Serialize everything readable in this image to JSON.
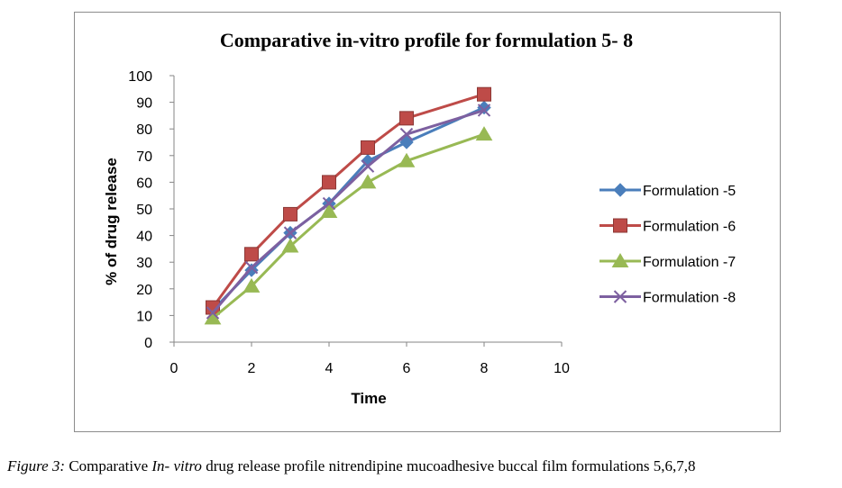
{
  "chart_data": {
    "type": "line",
    "title": "Comparative in-vitro profile for formulation 5- 8",
    "xlabel": "Time",
    "ylabel": "% of drug release",
    "xlim": [
      0,
      10
    ],
    "ylim": [
      0,
      100
    ],
    "xticks": [
      "0",
      "2",
      "4",
      "6",
      "8",
      "10"
    ],
    "yticks": [
      "0",
      "10",
      "20",
      "30",
      "40",
      "50",
      "60",
      "70",
      "80",
      "90",
      "100"
    ],
    "grid": false,
    "legend_position": "right",
    "x": [
      1,
      2,
      3,
      4,
      5,
      6,
      8
    ],
    "series": [
      {
        "name": "Formulation -5",
        "color": "#4a7ebb",
        "marker": "diamond",
        "values": [
          12,
          27,
          41,
          52,
          68,
          75,
          88
        ]
      },
      {
        "name": "Formulation -6",
        "color": "#be4b48",
        "marker": "square",
        "values": [
          13,
          33,
          48,
          60,
          73,
          84,
          93
        ]
      },
      {
        "name": "Formulation -7",
        "color": "#98b954",
        "marker": "triangle",
        "values": [
          9,
          21,
          36,
          49,
          60,
          68,
          78
        ]
      },
      {
        "name": "Formulation -8",
        "color": "#7d60a0",
        "marker": "x",
        "values": [
          11,
          28,
          41,
          52,
          66,
          78,
          87
        ]
      }
    ]
  },
  "caption": {
    "label": "Figure 3:",
    "text_before": " Comparative ",
    "italic": "In- vitro",
    "text_after": " drug release profile nitrendipine mucoadhesive buccal film formulations 5,6,7,8"
  }
}
